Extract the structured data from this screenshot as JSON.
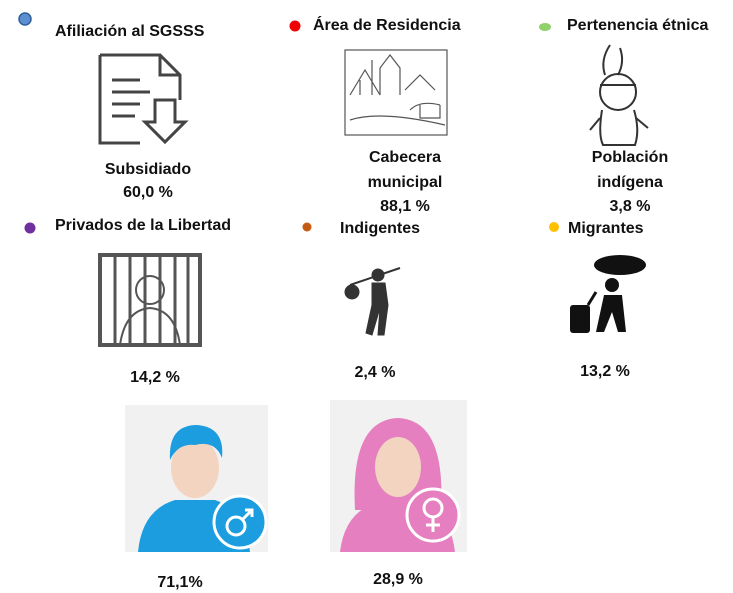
{
  "items": [
    {
      "title": "Afiliación al SGSSS",
      "label": [
        "Subsidiado"
      ],
      "value": "60,0 %"
    },
    {
      "title": "Área de Residencia",
      "label": [
        "Cabecera",
        "municipal"
      ],
      "value": "88,1 %"
    },
    {
      "title": "Pertenencia étnica",
      "label": [
        "Población",
        "indígena"
      ],
      "value": "3,8 %"
    },
    {
      "title": "Privados de la Libertad",
      "label": [],
      "value": "14,2 %"
    },
    {
      "title": "Indigentes",
      "label": [],
      "value": "2,4 %"
    },
    {
      "title": "Migrantes",
      "label": [],
      "value": "13,2 %"
    }
  ],
  "gender": [
    {
      "value": "71,1%"
    },
    {
      "value": "28,9 %"
    }
  ]
}
